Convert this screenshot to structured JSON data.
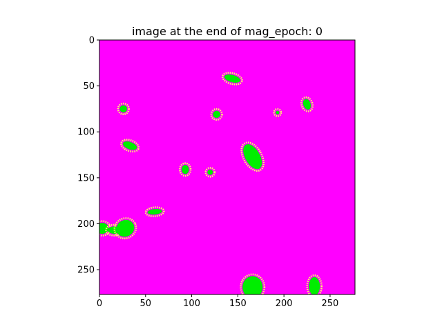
{
  "chart_data": {
    "type": "heatmap",
    "title": "image at the end of mag_epoch: 0",
    "xlabel": "",
    "ylabel": "",
    "xlim": [
      0,
      277
    ],
    "ylim": [
      277,
      0
    ],
    "x_ticks": [
      0,
      50,
      100,
      150,
      200,
      250
    ],
    "y_ticks": [
      0,
      50,
      100,
      150,
      200,
      250
    ],
    "background_color": "#ff00ff",
    "blob_color": "#00ee00",
    "halo_color": "#ffff66",
    "blobs": [
      {
        "cx": 144,
        "cy": 42,
        "rx": 9,
        "ry": 4,
        "angle": 15
      },
      {
        "cx": 26,
        "cy": 75,
        "rx": 4,
        "ry": 4,
        "angle": 0
      },
      {
        "cx": 127,
        "cy": 81,
        "rx": 4,
        "ry": 4,
        "angle": 0
      },
      {
        "cx": 193,
        "cy": 79,
        "rx": 2,
        "ry": 2,
        "angle": 0
      },
      {
        "cx": 225,
        "cy": 70,
        "rx": 4,
        "ry": 6,
        "angle": -20
      },
      {
        "cx": 33,
        "cy": 115,
        "rx": 8,
        "ry": 4,
        "angle": 20
      },
      {
        "cx": 166,
        "cy": 127,
        "rx": 8,
        "ry": 15,
        "angle": -30
      },
      {
        "cx": 93,
        "cy": 141,
        "rx": 4,
        "ry": 5,
        "angle": 0
      },
      {
        "cx": 120,
        "cy": 144,
        "rx": 3,
        "ry": 3,
        "angle": 0
      },
      {
        "cx": 60,
        "cy": 187,
        "rx": 8,
        "ry": 3,
        "angle": -5
      },
      {
        "cx": 3,
        "cy": 205,
        "rx": 7,
        "ry": 6,
        "angle": 0
      },
      {
        "cx": 16,
        "cy": 207,
        "rx": 7,
        "ry": 4,
        "angle": 0
      },
      {
        "cx": 28,
        "cy": 205,
        "rx": 10,
        "ry": 9,
        "angle": -25
      },
      {
        "cx": 166,
        "cy": 269,
        "rx": 11,
        "ry": 12,
        "angle": 0
      },
      {
        "cx": 233,
        "cy": 268,
        "rx": 6,
        "ry": 10,
        "angle": 0
      }
    ]
  }
}
